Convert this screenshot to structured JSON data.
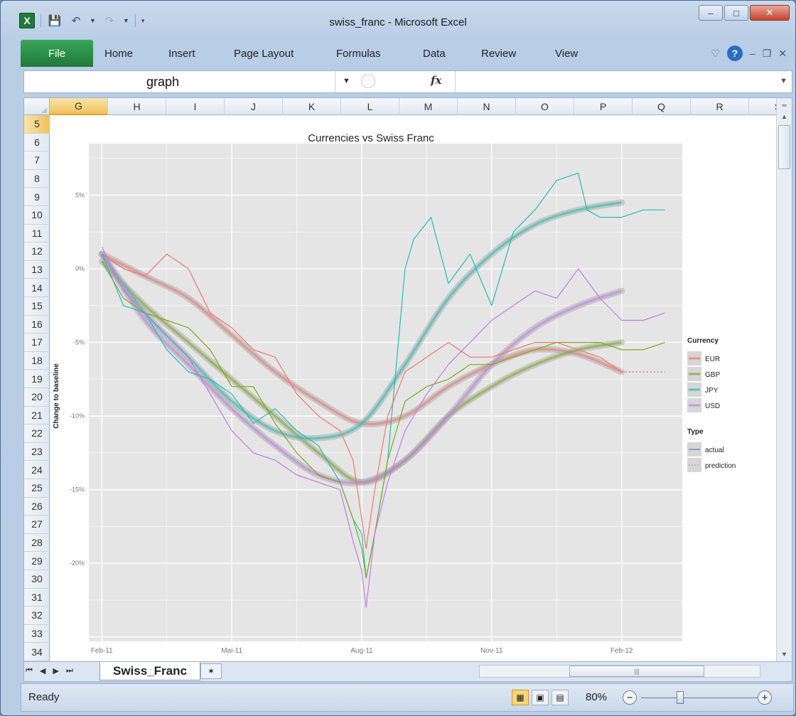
{
  "window": {
    "title": "swiss_franc - Microsoft Excel"
  },
  "qat": {
    "app_icon": "X"
  },
  "ribbon": {
    "tabs": [
      "File",
      "Home",
      "Insert",
      "Page Layout",
      "Formulas",
      "Data",
      "Review",
      "View"
    ]
  },
  "formula_bar": {
    "name_box": "graph",
    "fx": "fx",
    "value": ""
  },
  "columns": [
    "G",
    "H",
    "I",
    "J",
    "K",
    "L",
    "M",
    "N",
    "O",
    "P",
    "Q",
    "R",
    "S"
  ],
  "selected_column": "G",
  "rows": [
    "5",
    "6",
    "7",
    "8",
    "9",
    "10",
    "11",
    "12",
    "13",
    "14",
    "15",
    "16",
    "17",
    "18",
    "19",
    "20",
    "21",
    "22",
    "23",
    "24",
    "25",
    "26",
    "27",
    "28",
    "29",
    "30",
    "31",
    "32",
    "33",
    "34"
  ],
  "selected_row": "5",
  "sheet_tabs": {
    "active": "Swiss_Franc"
  },
  "status": {
    "ready": "Ready",
    "zoom": "80%"
  },
  "chart_data": {
    "type": "line",
    "title": "Currencies vs Swiss Franc",
    "xlabel": "",
    "ylabel": "Change to baseline",
    "x_ticks": [
      "Feb-11",
      "Mai-11",
      "Aug-11",
      "Nov-11",
      "Feb-12"
    ],
    "y_ticks": [
      "5%",
      "0%",
      "-5%",
      "-10%",
      "-15%",
      "-20%"
    ],
    "ylim": [
      -25.3,
      8.5
    ],
    "legend": {
      "currency_title": "Currency",
      "currencies": [
        "EUR",
        "GBP",
        "JPY",
        "USD"
      ],
      "type_title": "Type",
      "types": [
        "actual",
        "prediction"
      ]
    },
    "colors": {
      "EUR": "#f0776a",
      "GBP": "#7daa1a",
      "JPY": "#1fbfb4",
      "USD": "#c17be8",
      "panel": "#e5e5e5",
      "grid": "#ffffff"
    },
    "grid": "on",
    "legend_position": "right",
    "x_index_note": "x values are months from Feb-11 (0 = Feb-11, 12 = Feb-12)",
    "series": [
      {
        "name": "JPY",
        "type": "actual",
        "x": [
          0,
          0.5,
          1,
          1.5,
          2,
          2.5,
          3,
          3.5,
          4,
          4.5,
          5,
          5.5,
          5.8,
          6.0,
          6.1,
          6.3,
          6.6,
          7.0,
          7.2,
          7.6,
          8.0,
          8.5,
          9.0,
          9.5,
          10.0,
          10.5,
          11.0,
          11.2,
          11.5,
          12.0,
          12.5,
          13.0
        ],
        "y": [
          1,
          -2.5,
          -3,
          -5.5,
          -7,
          -7.5,
          -8.5,
          -10.5,
          -9.5,
          -11,
          -12,
          -14.5,
          -17,
          -18,
          -21,
          -18,
          -13,
          0,
          2,
          3.5,
          -1,
          1,
          -2.5,
          2.5,
          4,
          6,
          6.5,
          4,
          3.5,
          3.5,
          4,
          4
        ]
      },
      {
        "name": "GBP",
        "type": "actual",
        "x": [
          0,
          0.5,
          1,
          1.5,
          2,
          2.5,
          3,
          3.5,
          4,
          4.5,
          5,
          5.5,
          5.8,
          6.0,
          6.1,
          6.3,
          6.6,
          7.0,
          7.5,
          8.0,
          8.5,
          9.0,
          9.5,
          10.0,
          10.5,
          11.0,
          11.5,
          12.0,
          12.5,
          13.0
        ],
        "y": [
          0.5,
          -2,
          -3,
          -3.5,
          -4,
          -5.5,
          -8,
          -8,
          -10.5,
          -12.5,
          -14,
          -14.5,
          -17,
          -19,
          -21,
          -18,
          -13,
          -9,
          -8,
          -7.5,
          -6.5,
          -6.5,
          -6,
          -5.5,
          -5,
          -5,
          -5,
          -5.5,
          -5.5,
          -5
        ]
      },
      {
        "name": "USD",
        "type": "actual",
        "x": [
          0,
          0.5,
          1,
          1.5,
          2,
          2.5,
          3,
          3.5,
          4,
          4.5,
          5,
          5.5,
          5.8,
          6.0,
          6.1,
          6.3,
          6.6,
          7.0,
          7.5,
          8.0,
          8.5,
          9.0,
          9.5,
          10.0,
          10.5,
          11.0,
          11.5,
          12.0,
          12.5,
          13.0
        ],
        "y": [
          1.5,
          -1.5,
          -3,
          -4.5,
          -6,
          -8.5,
          -11,
          -12.5,
          -13,
          -14,
          -14.5,
          -15,
          -18.5,
          -20.5,
          -23,
          -18,
          -14.5,
          -11,
          -8.5,
          -6.5,
          -5,
          -3.5,
          -2.5,
          -1.5,
          -2,
          0,
          -2,
          -3.5,
          -3.5,
          -3
        ]
      },
      {
        "name": "EUR",
        "type": "actual",
        "x": [
          0,
          0.5,
          1,
          1.5,
          2,
          2.5,
          3,
          3.5,
          4,
          4.5,
          5,
          5.5,
          5.8,
          6.0,
          6.1,
          6.3,
          6.6,
          7.0,
          7.5,
          8.0,
          8.5,
          9.0,
          9.5,
          10.0,
          10.5,
          11.0,
          11.5,
          12.0
        ],
        "y": [
          1,
          0,
          -0.5,
          1,
          0,
          -3,
          -4,
          -5.5,
          -6,
          -8.5,
          -10,
          -11,
          -13,
          -17,
          -19,
          -15,
          -10,
          -7,
          -6,
          -5,
          -6,
          -6,
          -5.5,
          -5,
          -5,
          -5.5,
          -6,
          -7
        ]
      },
      {
        "name": "EUR",
        "type": "smooth",
        "x": [
          0,
          1,
          2,
          3,
          4,
          5,
          6,
          7,
          8,
          9,
          10,
          11,
          12
        ],
        "y": [
          1,
          -0.5,
          -2,
          -4.5,
          -7,
          -9,
          -10.5,
          -10,
          -8,
          -6.5,
          -5.5,
          -5.8,
          -7
        ]
      },
      {
        "name": "GBP",
        "type": "smooth",
        "x": [
          0,
          1,
          2,
          3,
          4,
          5,
          6,
          7,
          8,
          9,
          10,
          11,
          12
        ],
        "y": [
          0.5,
          -2.5,
          -5,
          -7.5,
          -10,
          -12.5,
          -14.5,
          -13,
          -10,
          -8,
          -6.5,
          -5.5,
          -5
        ]
      },
      {
        "name": "JPY",
        "type": "smooth",
        "x": [
          0,
          1,
          2,
          3,
          4,
          5,
          6,
          7,
          8,
          9,
          10,
          11,
          12
        ],
        "y": [
          1,
          -3,
          -6,
          -9,
          -11,
          -11.5,
          -10.5,
          -6.5,
          -2,
          1,
          3,
          4,
          4.5
        ]
      },
      {
        "name": "USD",
        "type": "smooth",
        "x": [
          0,
          1,
          2,
          3,
          4,
          5,
          6,
          7,
          8,
          9,
          10,
          11,
          12
        ],
        "y": [
          1,
          -3.5,
          -6.5,
          -9.5,
          -12,
          -14,
          -14.5,
          -13,
          -10,
          -6.5,
          -4,
          -2.5,
          -1.5
        ]
      },
      {
        "name": "EUR",
        "type": "prediction",
        "x": [
          12,
          13
        ],
        "y": [
          -7,
          -7
        ]
      }
    ]
  }
}
